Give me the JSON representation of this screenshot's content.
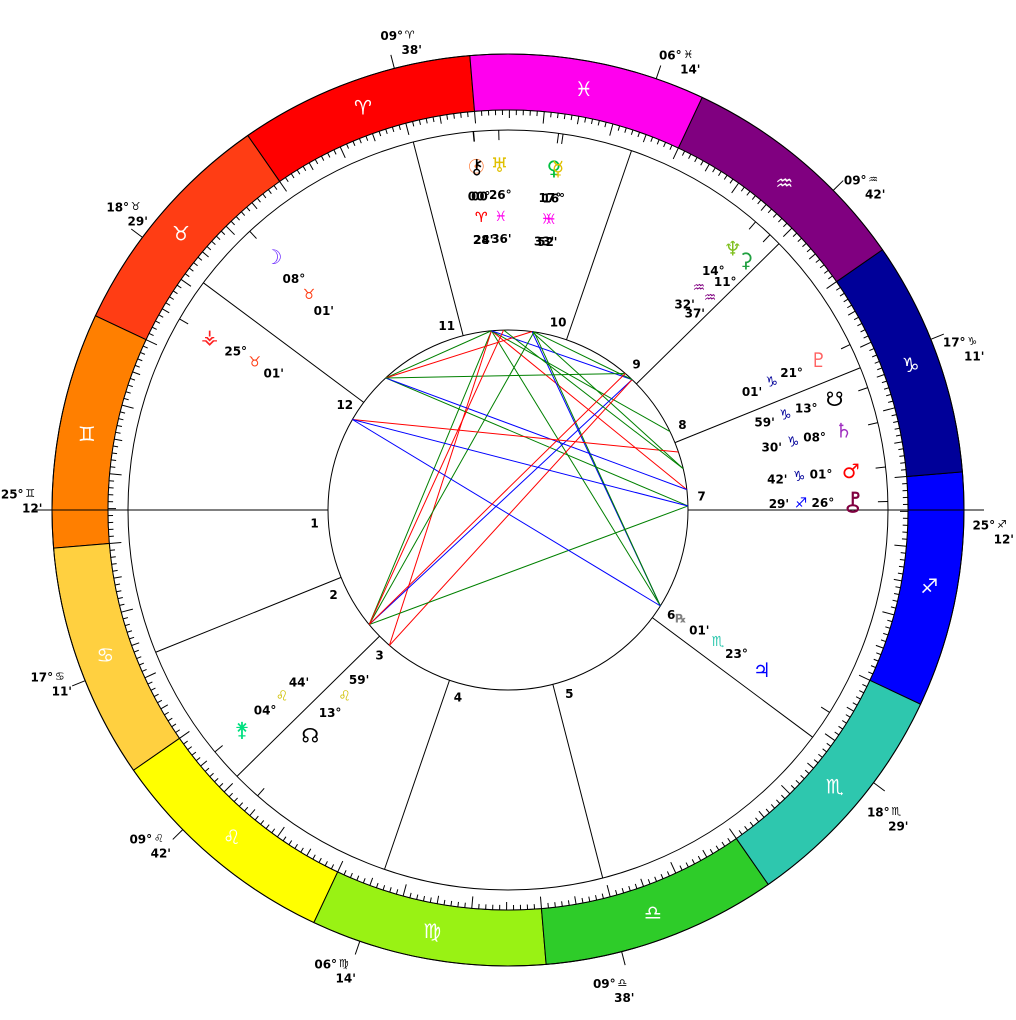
{
  "signs": [
    {
      "name": "Aries",
      "glyph": "♈",
      "color": "#ff0000",
      "glyph_color": "#ffffff"
    },
    {
      "name": "Taurus",
      "glyph": "♉",
      "color": "#ff3d14",
      "glyph_color": "#000000"
    },
    {
      "name": "Gemini",
      "glyph": "♊",
      "color": "#ff7f00",
      "glyph_color": "#ffffff"
    },
    {
      "name": "Cancer",
      "glyph": "♋",
      "color": "#ffd040",
      "glyph_color": "#000000"
    },
    {
      "name": "Leo",
      "glyph": "♌",
      "color": "#ffff00",
      "glyph_color": "#000000"
    },
    {
      "name": "Virgo",
      "glyph": "♍",
      "color": "#99f214",
      "glyph_color": "#ffffff"
    },
    {
      "name": "Libra",
      "glyph": "♎",
      "color": "#2ecc29",
      "glyph_color": "#ffffff"
    },
    {
      "name": "Scorpio",
      "glyph": "♏",
      "color": "#2ec7ae",
      "glyph_color": "#ffffff"
    },
    {
      "name": "Sagittarius",
      "glyph": "♐",
      "color": "#0000ff",
      "glyph_color": "#ffffff"
    },
    {
      "name": "Capricorn",
      "glyph": "♑",
      "color": "#000099",
      "glyph_color": "#ffffff"
    },
    {
      "name": "Aquarius",
      "glyph": "♒",
      "color": "#800080",
      "glyph_color": "#ffffff"
    },
    {
      "name": "Pisces",
      "glyph": "♓",
      "color": "#ff00ee",
      "glyph_color": "#ffffff"
    }
  ],
  "ascendant": {
    "sign": 2,
    "deg": 25,
    "min": 12
  },
  "house_cusps": [
    {
      "house": 1,
      "sign": 2,
      "deg": 25,
      "min": 12,
      "label_deg": "25°",
      "label_min": "12'"
    },
    {
      "house": 2,
      "sign": 3,
      "deg": 17,
      "min": 11,
      "label_deg": "17°",
      "label_min": "11'"
    },
    {
      "house": 3,
      "sign": 4,
      "deg": 9,
      "min": 42,
      "label_deg": "09°",
      "label_min": "42'"
    },
    {
      "house": 4,
      "sign": 5,
      "deg": 6,
      "min": 14,
      "label_deg": "06°",
      "label_min": "14'"
    },
    {
      "house": 5,
      "sign": 6,
      "deg": 9,
      "min": 38,
      "label_deg": "09°",
      "label_min": "38'"
    },
    {
      "house": 6,
      "sign": 7,
      "deg": 18,
      "min": 29,
      "label_deg": "18°",
      "label_min": "29'"
    },
    {
      "house": 7,
      "sign": 8,
      "deg": 25,
      "min": 12,
      "label_deg": "25°",
      "label_min": "12'"
    },
    {
      "house": 8,
      "sign": 9,
      "deg": 17,
      "min": 11,
      "label_deg": "17°",
      "label_min": "11'"
    },
    {
      "house": 9,
      "sign": 10,
      "deg": 9,
      "min": 42,
      "label_deg": "09°",
      "label_min": "42'"
    },
    {
      "house": 10,
      "sign": 11,
      "deg": 6,
      "min": 14,
      "label_deg": "06°",
      "label_min": "14'"
    },
    {
      "house": 11,
      "sign": 0,
      "deg": 9,
      "min": 38,
      "label_deg": "09°",
      "label_min": "38'"
    },
    {
      "house": 12,
      "sign": 1,
      "deg": 18,
      "min": 29,
      "label_deg": "18°",
      "label_min": "29'"
    }
  ],
  "planets": [
    {
      "name": "Sun",
      "glyph": "☉",
      "color": "#ff8040",
      "sign": 0,
      "deg": 0,
      "min": 28,
      "deg_label": "00°",
      "min_label": "28'"
    },
    {
      "name": "Chiron",
      "glyph": "⚷",
      "color": "#000000",
      "sign": 0,
      "deg": 0,
      "min": 24,
      "deg_label": "00",
      "min_label": "24'"
    },
    {
      "name": "Venus",
      "glyph": "♀",
      "color": "#00c040",
      "sign": 11,
      "deg": 17,
      "min": 33,
      "deg_label": "17°",
      "min_label": "33'"
    },
    {
      "name": "Mercury",
      "glyph": "☿",
      "color": "#e0c000",
      "sign": 11,
      "deg": 16,
      "min": 52,
      "deg_label": "16°",
      "min_label": "52'"
    },
    {
      "name": "Uranus",
      "glyph": "♅",
      "color": "#e0c000",
      "sign": 11,
      "deg": 26,
      "min": 36,
      "deg_label": "26°",
      "min_label": "36'"
    },
    {
      "name": "Moon",
      "glyph": "☽",
      "color": "#7030ff",
      "sign": 1,
      "deg": 8,
      "min": 1,
      "deg_label": "08°",
      "min_label": "01'"
    },
    {
      "name": "Vesta",
      "glyph": "⚶",
      "color": "#ff2020",
      "sign": 1,
      "deg": 25,
      "min": 1,
      "deg_label": "25°",
      "min_label": "01'"
    },
    {
      "name": "Neptune",
      "glyph": "♆",
      "color": "#80c020",
      "sign": 10,
      "deg": 14,
      "min": 32,
      "deg_label": "14°",
      "min_label": "32'"
    },
    {
      "name": "Ceres",
      "glyph": "⚳",
      "color": "#20a040",
      "sign": 10,
      "deg": 11,
      "min": 37,
      "deg_label": "11°",
      "min_label": "37'"
    },
    {
      "name": "Node",
      "glyph": "☋",
      "color": "#000000",
      "sign": 9,
      "deg": 13,
      "min": 59,
      "deg_label": "13°",
      "min_label": "59'"
    },
    {
      "name": "Pluto",
      "glyph": "♇",
      "color": "#ff6060",
      "sign": 9,
      "deg": 21,
      "min": 1,
      "deg_label": "21°",
      "min_label": "01'"
    },
    {
      "name": "Saturn",
      "glyph": "♄",
      "color": "#a030c0",
      "sign": 9,
      "deg": 8,
      "min": 30,
      "deg_label": "08°",
      "min_label": "30'"
    },
    {
      "name": "Mars",
      "glyph": "♂",
      "color": "#ff0000",
      "sign": 9,
      "deg": 1,
      "min": 42,
      "deg_label": "01°",
      "min_label": "42'"
    },
    {
      "name": "Pholus",
      "glyph": "⯛",
      "color": "#800040",
      "sign": 8,
      "deg": 26,
      "min": 29,
      "deg_label": "26°",
      "min_label": "29'"
    },
    {
      "name": "Jupiter",
      "glyph": "♃",
      "color": "#0000ff",
      "sign": 7,
      "deg": 23,
      "min": 1,
      "deg_label": "23°",
      "min_label": "01'",
      "retro": "℞"
    },
    {
      "name": "Juno",
      "glyph": "⚵",
      "color": "#00e080",
      "sign": 4,
      "deg": 4,
      "min": 44,
      "deg_label": "04°",
      "min_label": "44'"
    },
    {
      "name": "NNode",
      "glyph": "☊",
      "color": "#000000",
      "sign": 4,
      "deg": 13,
      "min": 59,
      "deg_label": "13°",
      "min_label": "59'"
    }
  ],
  "aspects": [
    {
      "from": "Sun",
      "to": "Mars",
      "color": "#ff0000"
    },
    {
      "from": "Sun",
      "to": "Pluto",
      "color": "#008000"
    },
    {
      "from": "Sun",
      "to": "Jupiter",
      "color": "#008000"
    },
    {
      "from": "Sun",
      "to": "Juno",
      "color": "#008000"
    },
    {
      "from": "Sun",
      "to": "NNode",
      "color": "#ff0000"
    },
    {
      "from": "Sun",
      "to": "Moon",
      "color": "#008000"
    },
    {
      "from": "Sun",
      "to": "Ceres",
      "color": "#0000ff"
    },
    {
      "from": "Venus",
      "to": "Saturn",
      "color": "#008000"
    },
    {
      "from": "Venus",
      "to": "Jupiter",
      "color": "#0000ff"
    },
    {
      "from": "Venus",
      "to": "Moon",
      "color": "#ff0000"
    },
    {
      "from": "Mercury",
      "to": "Jupiter",
      "color": "#008000"
    },
    {
      "from": "Mercury",
      "to": "Juno",
      "color": "#008000"
    },
    {
      "from": "Moon",
      "to": "Pholus",
      "color": "#008000"
    },
    {
      "from": "Moon",
      "to": "Mars",
      "color": "#0000ff"
    },
    {
      "from": "Moon",
      "to": "Neptune",
      "color": "#008000"
    },
    {
      "from": "Ceres",
      "to": "Juno",
      "color": "#0000ff"
    },
    {
      "from": "Ceres",
      "to": "NNode",
      "color": "#ff0000"
    },
    {
      "from": "Node",
      "to": "Vesta",
      "color": "#ff0000"
    },
    {
      "from": "Pholus",
      "to": "Juno",
      "color": "#008000"
    },
    {
      "from": "Pholus",
      "to": "Vesta",
      "color": "#0000ff"
    },
    {
      "from": "Jupiter",
      "to": "Vesta",
      "color": "#0000ff"
    },
    {
      "from": "Mercury",
      "to": "Ceres",
      "color": "#008000"
    },
    {
      "from": "Uranus",
      "to": "Saturn",
      "color": "#008000"
    },
    {
      "from": "Uranus",
      "to": "Juno",
      "color": "#ff0000"
    },
    {
      "from": "Neptune",
      "to": "Juno",
      "color": "#ff0000"
    }
  ],
  "aspect_glyphs": {
    "conjunction": "☌",
    "opposition": "☍",
    "trine": "△",
    "square": "□",
    "sextile": "⚹",
    "quincunx": "⚻"
  },
  "house_numbers": [
    "1",
    "2",
    "3",
    "4",
    "5",
    "6",
    "7",
    "8",
    "9",
    "10",
    "11",
    "12"
  ]
}
